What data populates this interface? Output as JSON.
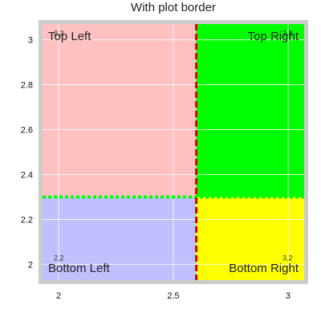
{
  "chart_data": {
    "type": "heatmap",
    "title": "With plot border",
    "xlabel": "",
    "ylabel": "",
    "xlim": [
      1.93,
      3.07
    ],
    "ylim": [
      1.93,
      3.07
    ],
    "grid": true,
    "x_ticks": [
      {
        "value": 2,
        "label": "2"
      },
      {
        "value": 2.5,
        "label": "2.5"
      },
      {
        "value": 3,
        "label": "3"
      }
    ],
    "y_ticks": [
      {
        "value": 2,
        "label": "2"
      },
      {
        "value": 2.2,
        "label": "2.2"
      },
      {
        "value": 2.4,
        "label": "2.4"
      },
      {
        "value": 2.6,
        "label": "2.6"
      },
      {
        "value": 2.8,
        "label": "2.8"
      },
      {
        "value": 3,
        "label": "3"
      }
    ],
    "plot_border_color": "#cccccc",
    "divider_x": {
      "value": 2.6,
      "color": "#dd0000",
      "style": "dashed"
    },
    "divider_y": {
      "value": 2.3,
      "color": "#00ff00",
      "style": "dotted"
    },
    "regions": [
      {
        "label": "Top Left",
        "x": [
          1.93,
          2.6
        ],
        "y": [
          2.3,
          3.07
        ],
        "color": "#ffc0c0",
        "label_anchor": "top-left"
      },
      {
        "label": "Top Right",
        "x": [
          2.6,
          3.07
        ],
        "y": [
          2.3,
          3.07
        ],
        "color": "#00ff00",
        "label_anchor": "top-right"
      },
      {
        "label": "Bottom Left",
        "x": [
          1.93,
          2.6
        ],
        "y": [
          1.93,
          2.3
        ],
        "color": "#c0c0ff",
        "label_anchor": "bottom-left"
      },
      {
        "label": "Bottom Right",
        "x": [
          2.6,
          3.07
        ],
        "y": [
          1.93,
          2.3
        ],
        "color": "#ffff00",
        "label_anchor": "bottom-right"
      }
    ],
    "corner_labels": [
      {
        "text": "2,3",
        "x": 2,
        "y": 3
      },
      {
        "text": "3,3",
        "x": 3,
        "y": 3
      },
      {
        "text": "2,2",
        "x": 2,
        "y": 2
      },
      {
        "text": "3,2",
        "x": 3,
        "y": 2
      }
    ]
  }
}
